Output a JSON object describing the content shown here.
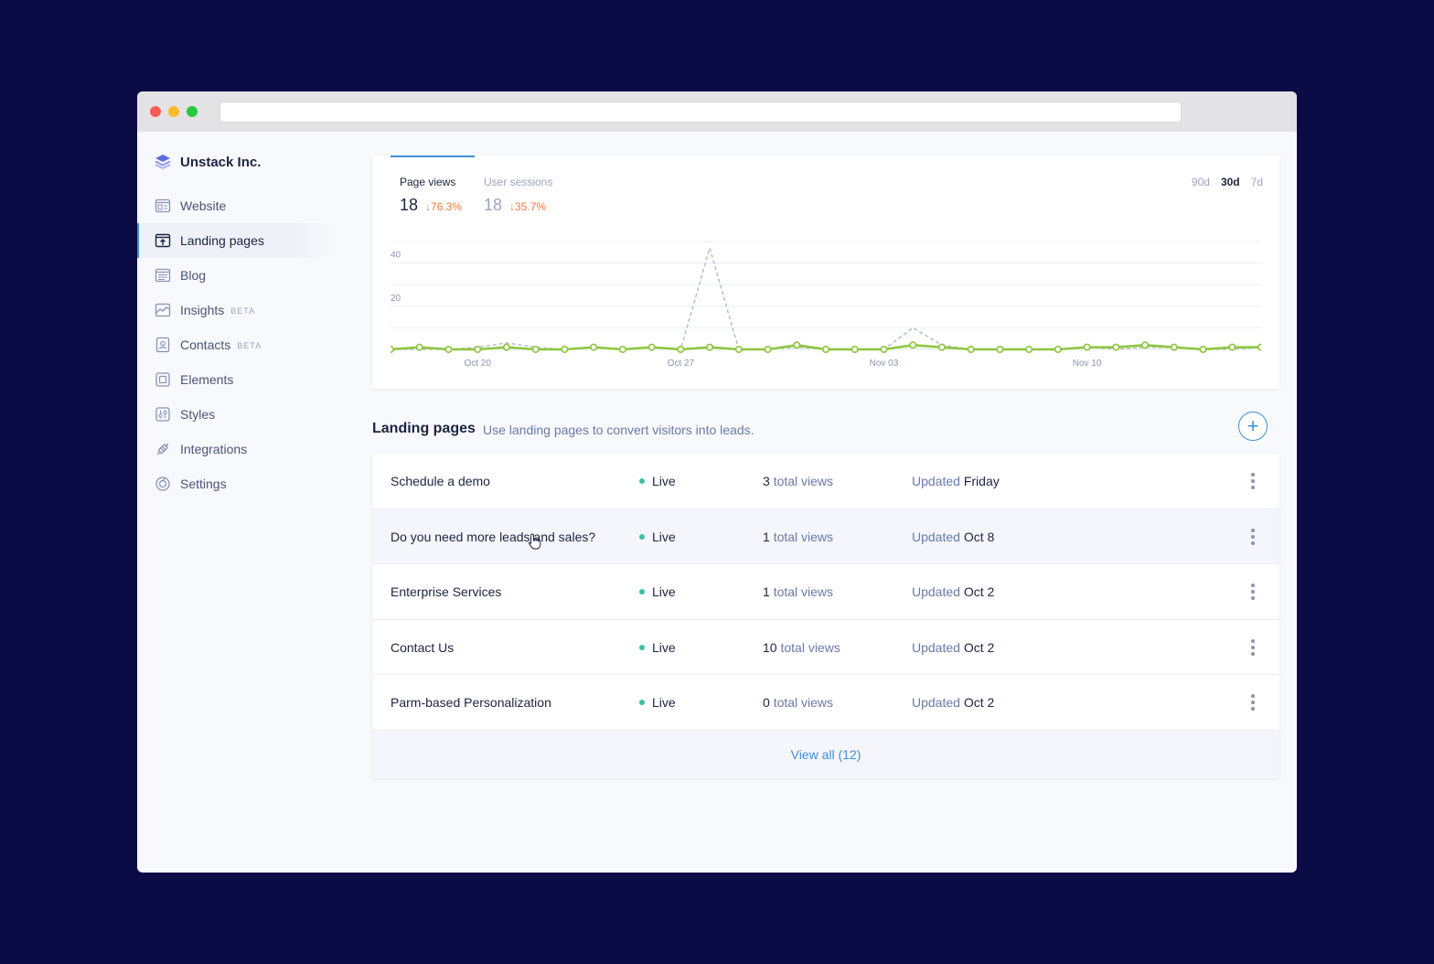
{
  "brand": {
    "name": "Unstack Inc."
  },
  "sidebar": {
    "items": [
      {
        "label": "Website",
        "icon": "website-icon",
        "badge": ""
      },
      {
        "label": "Landing pages",
        "icon": "landing-pages-icon",
        "badge": "",
        "active": true
      },
      {
        "label": "Blog",
        "icon": "blog-icon",
        "badge": ""
      },
      {
        "label": "Insights",
        "icon": "insights-icon",
        "badge": "BETA"
      },
      {
        "label": "Contacts",
        "icon": "contacts-icon",
        "badge": "BETA"
      },
      {
        "label": "Elements",
        "icon": "elements-icon",
        "badge": ""
      },
      {
        "label": "Styles",
        "icon": "styles-icon",
        "badge": ""
      },
      {
        "label": "Integrations",
        "icon": "integrations-icon",
        "badge": ""
      },
      {
        "label": "Settings",
        "icon": "settings-icon",
        "badge": ""
      }
    ]
  },
  "analytics": {
    "page_views": {
      "label": "Page views",
      "value": "18",
      "change": "76.3%"
    },
    "user_sessions": {
      "label": "User sessions",
      "value": "18",
      "change": "35.7%"
    },
    "ranges": [
      "90d",
      "30d",
      "7d"
    ],
    "selected_range": "30d"
  },
  "chart_data": {
    "type": "line",
    "x_tick_labels": [
      "Oct 20",
      "Oct 27",
      "Nov 03",
      "Nov 10"
    ],
    "x_tick_index": [
      3,
      10,
      17,
      24
    ],
    "y_tick_labels": [
      "20",
      "40"
    ],
    "y_ticks": [
      20,
      40
    ],
    "ylim": [
      0,
      50
    ],
    "grid": true,
    "series": [
      {
        "values": [
          0,
          1,
          0,
          0,
          1,
          0,
          0,
          1,
          0,
          1,
          0,
          1,
          0,
          0,
          2,
          0,
          0,
          0,
          2,
          1,
          0,
          0,
          0,
          0,
          1,
          1,
          2,
          1,
          0,
          1,
          1
        ],
        "color": "#8cc63e",
        "style": "solid"
      },
      {
        "values": [
          0,
          0,
          0,
          1,
          3,
          1,
          0,
          1,
          0,
          1,
          0,
          47,
          0,
          0,
          1,
          0,
          0,
          0,
          10,
          2,
          0,
          0,
          0,
          0,
          1,
          0,
          1,
          1,
          0,
          0,
          1
        ],
        "color": "#b8bcc8",
        "style": "dashed"
      }
    ]
  },
  "landing": {
    "title": "Landing pages",
    "subtitle": "Use landing pages to convert visitors into leads.",
    "views_suffix": "total views",
    "updated_prefix": "Updated",
    "rows": [
      {
        "name": "Schedule a demo",
        "status": "Live",
        "views": "3",
        "updated": "Friday"
      },
      {
        "name": "Do you need more leads and sales?",
        "status": "Live",
        "views": "1",
        "updated": "Oct 8"
      },
      {
        "name": "Enterprise Services",
        "status": "Live",
        "views": "1",
        "updated": "Oct 2"
      },
      {
        "name": "Contact Us",
        "status": "Live",
        "views": "10",
        "updated": "Oct 2"
      },
      {
        "name": "Parm-based Personalization",
        "status": "Live",
        "views": "0",
        "updated": "Oct 2"
      }
    ],
    "view_all": "View all (12)"
  }
}
